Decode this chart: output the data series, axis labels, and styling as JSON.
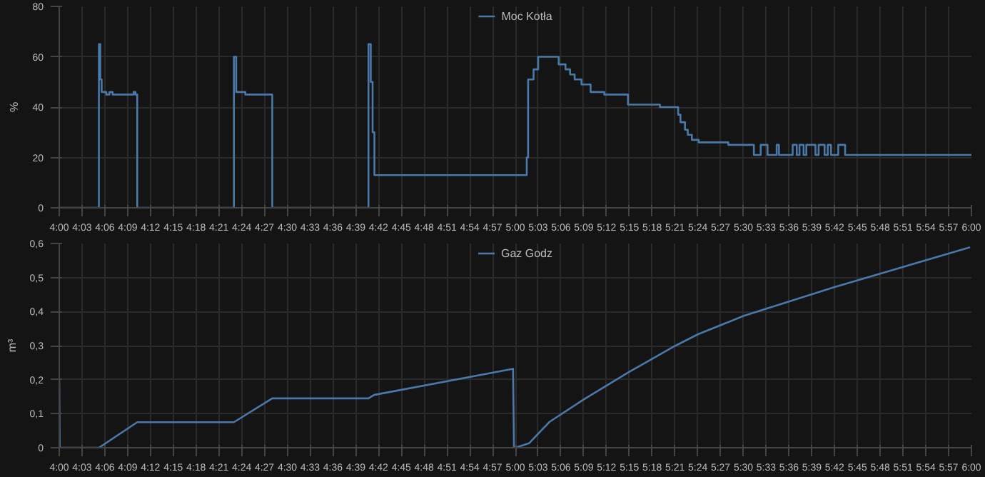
{
  "chart_data": [
    {
      "type": "step",
      "ylabel": "%",
      "legend": "top",
      "grid": true,
      "marker": "none",
      "x": [
        4.0,
        4.087,
        4.09,
        4.093,
        4.103,
        4.11,
        4.117,
        4.163,
        4.167,
        4.171,
        4.383,
        4.388,
        4.408,
        4.467,
        4.678,
        4.683,
        4.687,
        4.691,
        5.025,
        5.028,
        5.04,
        5.05,
        5.095,
        5.11,
        5.12,
        5.13,
        5.145,
        5.165,
        5.195,
        5.247,
        5.317,
        5.357,
        5.362,
        5.372,
        5.378,
        5.387,
        5.402,
        5.467,
        5.523,
        5.538,
        5.553,
        5.573,
        5.578,
        5.608,
        5.617,
        5.623,
        5.632,
        5.638,
        5.658,
        5.665,
        5.678,
        5.685,
        5.692,
        5.708,
        5.723,
        6.0
      ],
      "series": [
        {
          "name": "Moc Kotła",
          "color": "#4a78a8",
          "values": [
            0,
            65,
            51,
            46,
            45,
            46,
            45,
            46,
            45,
            0,
            60,
            46,
            45,
            0,
            65,
            50,
            30,
            13,
            20,
            51,
            55,
            60,
            57,
            55,
            53,
            51,
            49,
            46,
            45,
            41,
            40,
            37,
            34,
            31,
            29,
            27,
            26,
            25,
            21,
            25,
            21,
            25,
            21,
            25,
            21,
            25,
            21,
            25,
            21,
            25,
            21,
            25,
            21,
            25,
            21,
            21
          ]
        }
      ],
      "xlim": [
        4.0,
        6.0
      ],
      "xticks": [
        {
          "value": 4.0,
          "label": "4:00"
        },
        {
          "value": 4.05,
          "label": "4:03"
        },
        {
          "value": 4.1,
          "label": "4:06"
        },
        {
          "value": 4.15,
          "label": "4:09"
        },
        {
          "value": 4.2,
          "label": "4:12"
        },
        {
          "value": 4.25,
          "label": "4:15"
        },
        {
          "value": 4.3,
          "label": "4:18"
        },
        {
          "value": 4.35,
          "label": "4:21"
        },
        {
          "value": 4.4,
          "label": "4:24"
        },
        {
          "value": 4.45,
          "label": "4:27"
        },
        {
          "value": 4.5,
          "label": "4:30"
        },
        {
          "value": 4.55,
          "label": "4:33"
        },
        {
          "value": 4.6,
          "label": "4:36"
        },
        {
          "value": 4.65,
          "label": "4:39"
        },
        {
          "value": 4.7,
          "label": "4:42"
        },
        {
          "value": 4.75,
          "label": "4:45"
        },
        {
          "value": 4.8,
          "label": "4:48"
        },
        {
          "value": 4.85,
          "label": "4:51"
        },
        {
          "value": 4.9,
          "label": "4:54"
        },
        {
          "value": 4.95,
          "label": "4:57"
        },
        {
          "value": 5.0,
          "label": "5:00"
        },
        {
          "value": 5.05,
          "label": "5:03"
        },
        {
          "value": 5.1,
          "label": "5:06"
        },
        {
          "value": 5.15,
          "label": "5:09"
        },
        {
          "value": 5.2,
          "label": "5:12"
        },
        {
          "value": 5.25,
          "label": "5:15"
        },
        {
          "value": 5.3,
          "label": "5:18"
        },
        {
          "value": 5.35,
          "label": "5:21"
        },
        {
          "value": 5.4,
          "label": "5:24"
        },
        {
          "value": 5.45,
          "label": "5:27"
        },
        {
          "value": 5.5,
          "label": "5:30"
        },
        {
          "value": 5.55,
          "label": "5:33"
        },
        {
          "value": 5.6,
          "label": "5:36"
        },
        {
          "value": 5.65,
          "label": "5:39"
        },
        {
          "value": 5.7,
          "label": "5:42"
        },
        {
          "value": 5.75,
          "label": "5:45"
        },
        {
          "value": 5.8,
          "label": "5:48"
        },
        {
          "value": 5.85,
          "label": "5:51"
        },
        {
          "value": 5.9,
          "label": "5:54"
        },
        {
          "value": 5.95,
          "label": "5:57"
        },
        {
          "value": 6.0,
          "label": "6:00"
        }
      ],
      "ylim": [
        0,
        80
      ],
      "yticks": [
        0,
        20,
        40,
        60,
        80
      ]
    },
    {
      "type": "line",
      "ylabel": "m³",
      "legend": "top",
      "grid": true,
      "marker": "none",
      "x": [
        4.0,
        4.001,
        4.087,
        4.171,
        4.383,
        4.467,
        4.678,
        4.69,
        4.995,
        4.997,
        5.0,
        5.03,
        5.075,
        5.15,
        5.25,
        5.35,
        5.4,
        5.5,
        5.7,
        5.997
      ],
      "series": [
        {
          "name": "Gaz Godz",
          "color": "#4a78a8",
          "values": [
            0.2,
            0,
            0,
            0.075,
            0.075,
            0.145,
            0.145,
            0.155,
            0.232,
            0,
            0,
            0.013,
            0.076,
            0.142,
            0.223,
            0.299,
            0.333,
            0.387,
            0.472,
            0.589
          ]
        }
      ],
      "xlim": [
        4.0,
        6.0
      ],
      "xticks": [
        {
          "value": 4.0,
          "label": "4:00"
        },
        {
          "value": 4.05,
          "label": "4:03"
        },
        {
          "value": 4.1,
          "label": "4:06"
        },
        {
          "value": 4.15,
          "label": "4:09"
        },
        {
          "value": 4.2,
          "label": "4:12"
        },
        {
          "value": 4.25,
          "label": "4:15"
        },
        {
          "value": 4.3,
          "label": "4:18"
        },
        {
          "value": 4.35,
          "label": "4:21"
        },
        {
          "value": 4.4,
          "label": "4:24"
        },
        {
          "value": 4.45,
          "label": "4:27"
        },
        {
          "value": 4.5,
          "label": "4:30"
        },
        {
          "value": 4.55,
          "label": "4:33"
        },
        {
          "value": 4.6,
          "label": "4:36"
        },
        {
          "value": 4.65,
          "label": "4:39"
        },
        {
          "value": 4.7,
          "label": "4:42"
        },
        {
          "value": 4.75,
          "label": "4:45"
        },
        {
          "value": 4.8,
          "label": "4:48"
        },
        {
          "value": 4.85,
          "label": "4:51"
        },
        {
          "value": 4.9,
          "label": "4:54"
        },
        {
          "value": 4.95,
          "label": "4:57"
        },
        {
          "value": 5.0,
          "label": "5:00"
        },
        {
          "value": 5.05,
          "label": "5:03"
        },
        {
          "value": 5.1,
          "label": "5:06"
        },
        {
          "value": 5.15,
          "label": "5:09"
        },
        {
          "value": 5.2,
          "label": "5:12"
        },
        {
          "value": 5.25,
          "label": "5:15"
        },
        {
          "value": 5.3,
          "label": "5:18"
        },
        {
          "value": 5.35,
          "label": "5:21"
        },
        {
          "value": 5.4,
          "label": "5:24"
        },
        {
          "value": 5.45,
          "label": "5:27"
        },
        {
          "value": 5.5,
          "label": "5:30"
        },
        {
          "value": 5.55,
          "label": "5:33"
        },
        {
          "value": 5.6,
          "label": "5:36"
        },
        {
          "value": 5.65,
          "label": "5:39"
        },
        {
          "value": 5.7,
          "label": "5:42"
        },
        {
          "value": 5.75,
          "label": "5:45"
        },
        {
          "value": 5.8,
          "label": "5:48"
        },
        {
          "value": 5.85,
          "label": "5:51"
        },
        {
          "value": 5.9,
          "label": "5:54"
        },
        {
          "value": 5.95,
          "label": "5:57"
        },
        {
          "value": 6.0,
          "label": "6:00"
        }
      ],
      "ylim": [
        0,
        0.6
      ],
      "yticks": [
        {
          "value": 0,
          "label": "0"
        },
        {
          "value": 0.1,
          "label": "0,1"
        },
        {
          "value": 0.2,
          "label": "0,2"
        },
        {
          "value": 0.3,
          "label": "0,3"
        },
        {
          "value": 0.4,
          "label": "0,4"
        },
        {
          "value": 0.5,
          "label": "0,5"
        },
        {
          "value": 0.6,
          "label": "0,6"
        }
      ]
    }
  ]
}
